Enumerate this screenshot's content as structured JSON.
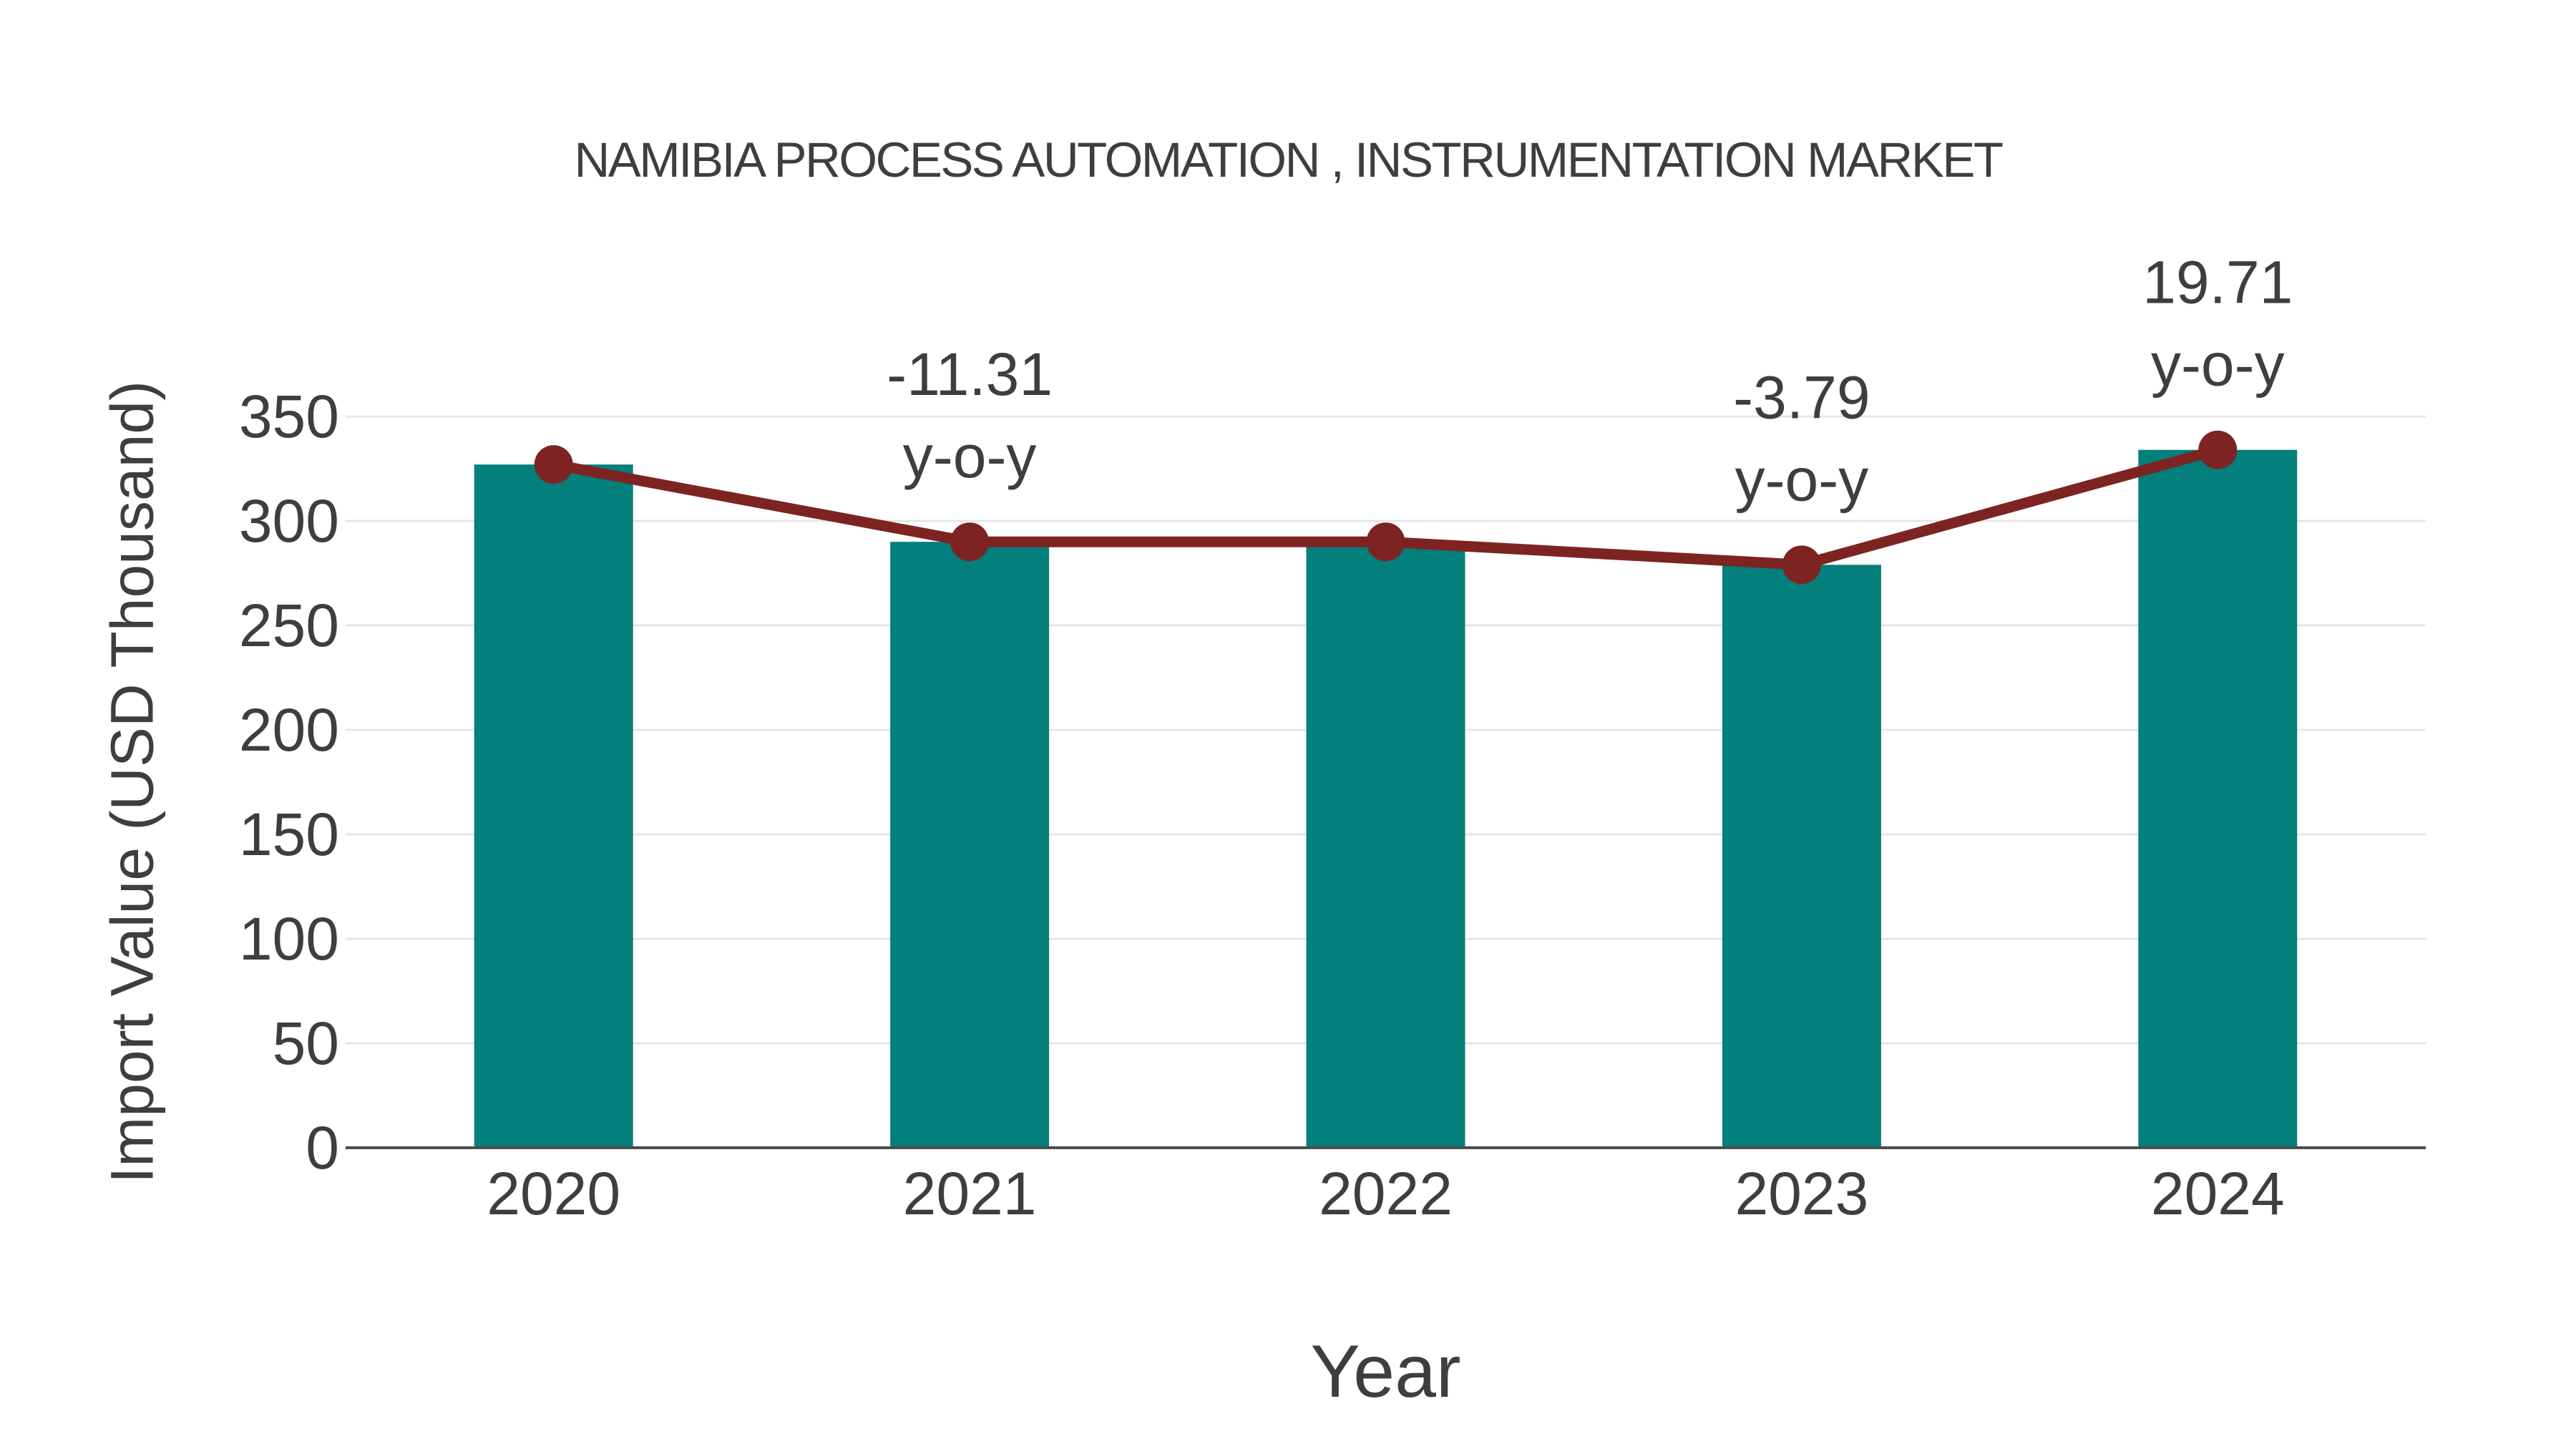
{
  "colors": {
    "bar_teal": "#037F7C",
    "line_maroon": "#7D2423",
    "text_gray": "#3E3E3E",
    "gridline_gray": "#E6E6E6",
    "axis_gray": "#4D4D4D",
    "background": "#FFFFFF"
  },
  "chart_data": {
    "type": "bar",
    "categories": [
      "2020",
      "2021",
      "2022",
      "2023",
      "2024"
    ],
    "series": [
      {
        "name": "Import Value bars",
        "type": "bar",
        "values": [
          327,
          290,
          290,
          279,
          334
        ]
      },
      {
        "name": "Import Value trend line",
        "type": "line",
        "values": [
          327,
          290,
          290,
          279,
          334
        ]
      }
    ],
    "annotations": [
      {
        "category": "2021",
        "value_label": "-11.31",
        "unit_label": "y-o-y"
      },
      {
        "category": "2023",
        "value_label": "-3.79",
        "unit_label": "y-o-y"
      },
      {
        "category": "2024",
        "value_label": "19.71",
        "unit_label": "y-o-y"
      }
    ],
    "title": "NAMIBIA PROCESS AUTOMATION , INSTRUMENTATION MARKET",
    "xlabel": "Year",
    "ylabel": "Import Value (USD Thousand)",
    "yticks": [
      0,
      50,
      100,
      150,
      200,
      250,
      300,
      350
    ],
    "ylim": [
      0,
      350
    ],
    "grid": true,
    "legend": false
  }
}
